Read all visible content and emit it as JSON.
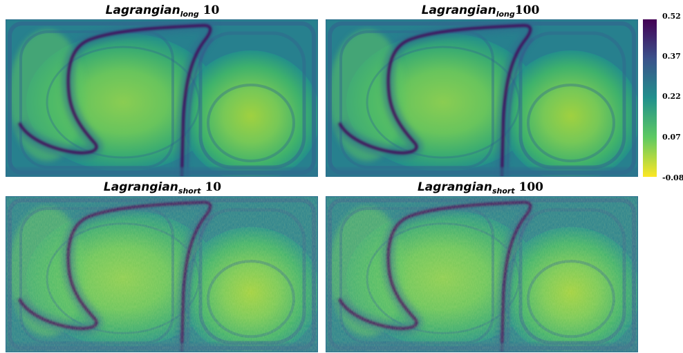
{
  "panels": [
    {
      "name": "Lagrangian",
      "subscript": "long",
      "number": " 10",
      "variant": "long"
    },
    {
      "name": "Lagrangian",
      "subscript": "long",
      "number": "100",
      "variant": "long"
    },
    {
      "name": "Lagrangian",
      "subscript": "short",
      "number": " 10",
      "variant": "short"
    },
    {
      "name": "Lagrangian",
      "subscript": "short",
      "number": " 100",
      "variant": "short"
    }
  ],
  "colorbar": {
    "ticks": [
      "0.52",
      "0.37",
      "0.22",
      "0.07",
      "-0.08"
    ],
    "colormap": "viridis-reversed",
    "stops": [
      "#440154",
      "#3b528b",
      "#21908c",
      "#5ec962",
      "#fde725"
    ]
  }
}
